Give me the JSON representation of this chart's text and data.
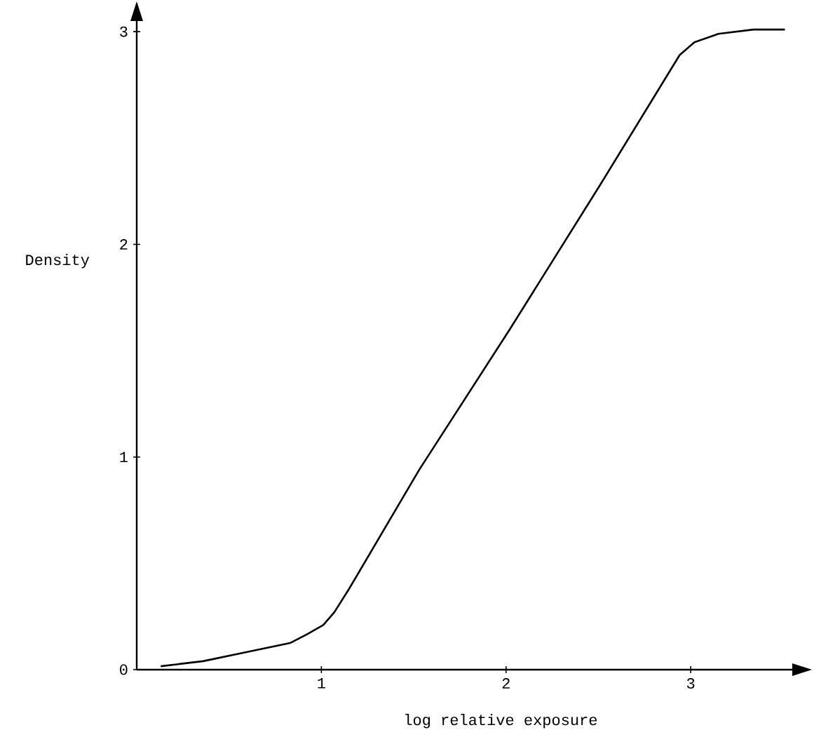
{
  "chart_data": {
    "type": "line",
    "xlabel": "log relative exposure",
    "ylabel": "Density",
    "x": [
      0.13,
      0.36,
      0.58,
      0.83,
      0.92,
      1.01,
      1.07,
      1.15,
      1.53,
      2.02,
      2.51,
      2.94,
      3.02,
      3.15,
      3.34,
      3.51
    ],
    "values": [
      0.016,
      0.04,
      0.08,
      0.125,
      0.165,
      0.21,
      0.27,
      0.38,
      0.94,
      1.6,
      2.28,
      2.89,
      2.95,
      2.99,
      3.01,
      3.01
    ],
    "color": "#000000",
    "xlim": [
      0,
      3.55
    ],
    "ylim": [
      0,
      3.05
    ],
    "xticks": [
      1,
      2,
      3
    ],
    "yticks": [
      0,
      1,
      2,
      3
    ]
  }
}
